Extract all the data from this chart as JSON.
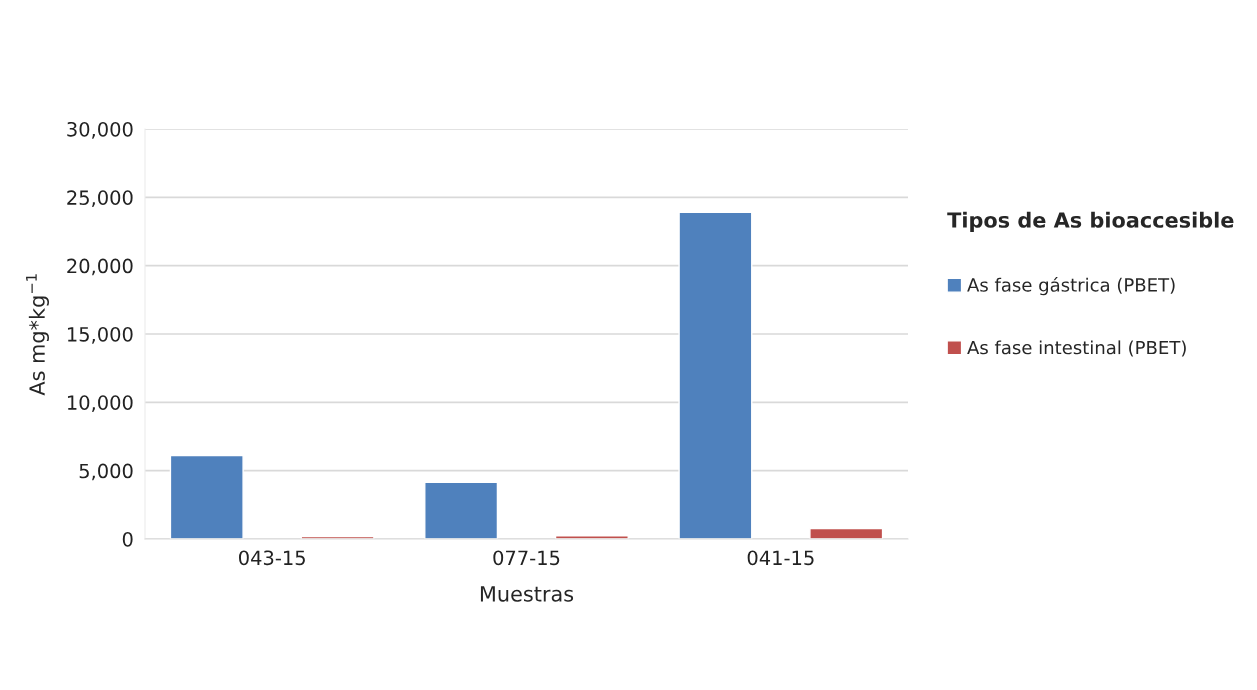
{
  "chart_data": {
    "type": "bar",
    "xlabel": "Muestras",
    "ylabel": "As mg*kg$^{−1}$",
    "legend_title": "Tipos de As bioaccesible",
    "categories": [
      "043-15",
      "077-15",
      "041-15"
    ],
    "series": [
      {
        "name": "As fase gástrica (PBET)",
        "color": "#4f81bd",
        "values": [
          6100,
          4150,
          23900
        ]
      },
      {
        "name": "As fase intestinal (PBET)",
        "color": "#c0504d",
        "values": [
          180,
          240,
          770
        ]
      }
    ],
    "ylim": [
      0,
      30000
    ],
    "yticks": [
      {
        "value": 0,
        "label": "0"
      },
      {
        "value": 5000,
        "label": "5,000"
      },
      {
        "value": 10000,
        "label": "10,000"
      },
      {
        "value": 15000,
        "label": "15,000"
      },
      {
        "value": 20000,
        "label": "20,000"
      },
      {
        "value": 25000,
        "label": "25,000"
      },
      {
        "value": 30000,
        "label": "30,000"
      }
    ],
    "grid": "y",
    "legend": "right"
  }
}
